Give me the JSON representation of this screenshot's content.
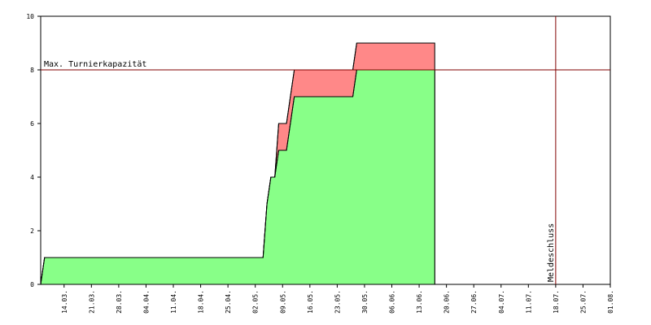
{
  "chart_data": {
    "type": "area",
    "x": [
      "08.03.",
      "09.03.",
      "04.05.",
      "05.05.",
      "06.05.",
      "07.05.",
      "08.05.",
      "10.05.",
      "12.05.",
      "27.05.",
      "28.05.",
      "17.06."
    ],
    "series": [
      {
        "color": "#ff8888",
        "values": [
          0,
          1,
          1,
          3,
          4,
          4,
          6,
          6,
          8,
          8,
          9,
          9
        ]
      },
      {
        "color": "#88ff88",
        "values": [
          0,
          1,
          1,
          3,
          4,
          4,
          5,
          5,
          7,
          7,
          8,
          8
        ]
      }
    ],
    "xlim": [
      "08.03.",
      "01.08."
    ],
    "xticks": [
      "14.03.",
      "21.03.",
      "28.03.",
      "04.04.",
      "11.04.",
      "18.04.",
      "25.04.",
      "02.05.",
      "09.05.",
      "16.05.",
      "23.05.",
      "30.05.",
      "06.06.",
      "13.06.",
      "20.06.",
      "27.06.",
      "04.07.",
      "11.07.",
      "18.07.",
      "25.07.",
      "01.08."
    ],
    "ylim": [
      0,
      10
    ],
    "yticks": [
      0,
      2,
      4,
      6,
      8,
      10
    ],
    "annotations": [
      {
        "type": "hline",
        "value": 8,
        "text": "Max. Turnierkapazität",
        "color": "#800000"
      },
      {
        "type": "vline",
        "x": "18.07.",
        "text": "Meldeschluss",
        "color": "#800000"
      }
    ]
  }
}
